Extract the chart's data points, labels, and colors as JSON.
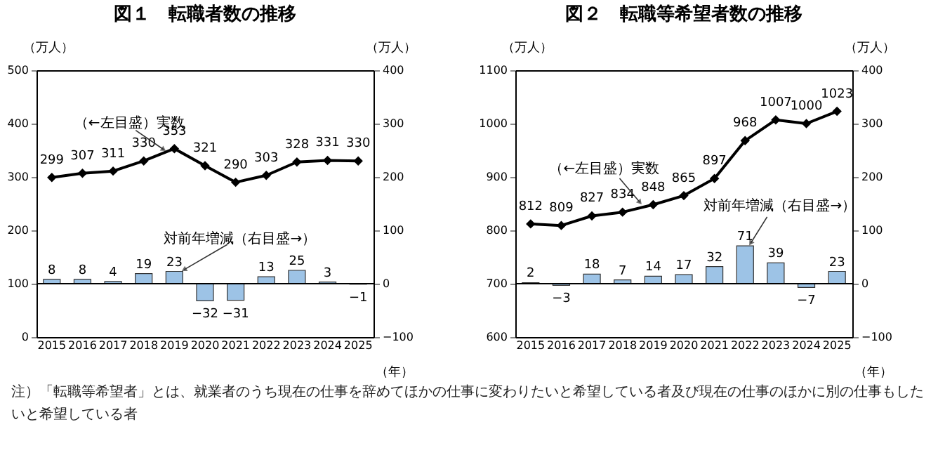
{
  "chart_data": [
    {
      "type": "line",
      "title": "図１　転職者数の推移",
      "ylabel": "（万人）",
      "y2label": "（万人）",
      "xlabel": "（年）",
      "categories": [
        "2015",
        "2016",
        "2017",
        "2018",
        "2019",
        "2020",
        "2021",
        "2022",
        "2023",
        "2024",
        "2025"
      ],
      "series": [
        {
          "name": "対前年増減（右目盛→）",
          "type": "bar",
          "axis": "y2",
          "color": "#9dc3e6",
          "values": [
            8,
            8,
            4,
            19,
            23,
            -32,
            -31,
            13,
            25,
            3,
            -1
          ]
        },
        {
          "name": "（←左目盛）実数",
          "type": "line",
          "color": "#000000",
          "values": [
            299,
            307,
            311,
            330,
            353,
            321,
            290,
            303,
            328,
            331,
            330
          ]
        }
      ],
      "ylim": [
        0,
        500
      ],
      "yticks": [
        0,
        100,
        200,
        300,
        400,
        500
      ],
      "y2lim": [
        -100,
        400
      ],
      "y2ticks": [
        -100,
        0,
        100,
        200,
        300,
        400
      ],
      "ref_lines": [
        {
          "axis": "y2",
          "value": 0
        }
      ],
      "data_labels": true,
      "marker": "diamond",
      "grid": false,
      "legend": false
    },
    {
      "type": "line",
      "title": "図２　転職等希望者数の推移",
      "ylabel": "（万人）",
      "y2label": "（万人）",
      "xlabel": "（年）",
      "categories": [
        "2015",
        "2016",
        "2017",
        "2018",
        "2019",
        "2020",
        "2021",
        "2022",
        "2023",
        "2024",
        "2025"
      ],
      "series": [
        {
          "name": "対前年増減（右目盛→）",
          "type": "bar",
          "axis": "y2",
          "color": "#9dc3e6",
          "values": [
            2,
            -3,
            18,
            7,
            14,
            17,
            32,
            71,
            39,
            -7,
            23
          ]
        },
        {
          "name": "（←左目盛）実数",
          "type": "line",
          "color": "#000000",
          "values": [
            812,
            809,
            827,
            834,
            848,
            865,
            897,
            968,
            1007,
            1000,
            1023
          ]
        }
      ],
      "ylim": [
        600,
        1100
      ],
      "yticks": [
        600,
        700,
        800,
        900,
        1000,
        1100
      ],
      "y2lim": [
        -100,
        400
      ],
      "y2ticks": [
        -100,
        0,
        100,
        200,
        300,
        400
      ],
      "ref_lines": [
        {
          "axis": "y2",
          "value": 0
        }
      ],
      "data_labels": true,
      "marker": "diamond",
      "grid": false,
      "legend": false,
      "annotations": [
        "注）「転職等希望者」とは、就業者のうち現在の仕事を辞めてほかの仕事に変わりたいと希望している者及び現在の仕事のほかに別の仕事もしたいと希望している者"
      ]
    }
  ]
}
